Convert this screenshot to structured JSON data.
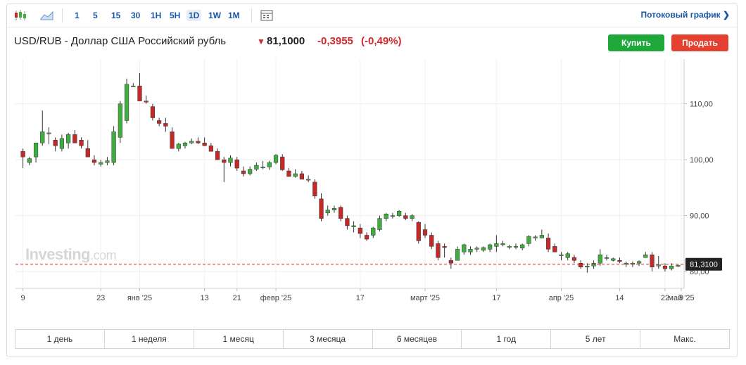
{
  "toolbar": {
    "timeframes": [
      "1",
      "5",
      "15",
      "30",
      "1H",
      "5H",
      "1D",
      "1W",
      "1M"
    ],
    "active_timeframe": "1D",
    "stream_label": "Потоковый график",
    "icons": [
      "candlestick-icon",
      "area-chart-icon",
      "calendar-icon",
      "chevron-right-icon"
    ]
  },
  "instrument": {
    "title": "USD/RUB - Доллар США Российский рубль",
    "price": "81,1000",
    "change": "-0,3955",
    "change_pct": "(-0,49%)",
    "direction_icon": "down-arrow-icon"
  },
  "actions": {
    "buy": "Купить",
    "sell": "Продать"
  },
  "watermark": {
    "brand": "Investing",
    "suffix": ".com"
  },
  "colors": {
    "up": "#3fae3f",
    "down": "#c62828",
    "accent": "#1a56a6",
    "buy": "#1fa83a",
    "sell": "#e3402f"
  },
  "chart_data": {
    "type": "candlestick",
    "y_axis": {
      "ticks": [
        "80,00",
        "90,00",
        "100,00",
        "110,00"
      ],
      "tick_values": [
        80,
        90,
        100,
        110
      ],
      "ylim": [
        77,
        118
      ],
      "position": "right"
    },
    "x_axis": {
      "labels": [
        "9",
        "23",
        "янв '25",
        "13",
        "21",
        "февр '25",
        "17",
        "март '25",
        "17",
        "апр '25",
        "14",
        "22",
        "май '25",
        "9"
      ]
    },
    "current_price_label": "81,3100",
    "current_price": 81.31,
    "candles": [
      [
        101.5,
        102.0,
        98.5,
        100.5
      ],
      [
        99.5,
        100.5,
        99.0,
        100.2
      ],
      [
        100.5,
        103.0,
        99.5,
        103.0
      ],
      [
        103.0,
        108.8,
        102.5,
        105.0
      ],
      [
        104.8,
        105.8,
        102.8,
        104.8
      ],
      [
        103.5,
        104.0,
        101.5,
        102.5
      ],
      [
        102.0,
        104.5,
        101.5,
        103.8
      ],
      [
        103.0,
        104.8,
        102.0,
        104.5
      ],
      [
        104.5,
        105.3,
        103.0,
        103.0
      ],
      [
        103.5,
        104.0,
        102.0,
        102.5
      ],
      [
        102.0,
        103.5,
        100.5,
        100.5
      ],
      [
        100.0,
        100.8,
        99.0,
        99.5
      ],
      [
        99.2,
        100.0,
        98.8,
        99.5
      ],
      [
        99.5,
        100.5,
        99.0,
        99.8
      ],
      [
        99.5,
        106.0,
        99.0,
        105.0
      ],
      [
        104.0,
        110.5,
        103.0,
        110.0
      ],
      [
        107.0,
        114.5,
        106.5,
        113.5
      ],
      [
        113.2,
        113.7,
        113.0,
        113.2
      ],
      [
        113.2,
        115.5,
        110.5,
        110.5
      ],
      [
        110.5,
        111.5,
        110.0,
        110.3
      ],
      [
        109.5,
        110.0,
        107.0,
        107.5
      ],
      [
        107.0,
        107.5,
        106.0,
        106.5
      ],
      [
        106.5,
        107.5,
        105.0,
        106.0
      ],
      [
        105.0,
        105.8,
        102.0,
        102.0
      ],
      [
        102.0,
        103.0,
        101.5,
        102.8
      ],
      [
        102.5,
        103.2,
        102.0,
        103.0
      ],
      [
        103.0,
        103.8,
        102.8,
        103.3
      ],
      [
        103.3,
        104.0,
        102.8,
        103.0
      ],
      [
        103.0,
        104.0,
        102.5,
        102.5
      ],
      [
        102.5,
        103.0,
        101.5,
        101.5
      ],
      [
        101.5,
        102.0,
        100.0,
        100.0
      ],
      [
        100.0,
        100.5,
        96.0,
        99.5
      ],
      [
        99.5,
        100.8,
        98.8,
        100.3
      ],
      [
        100.0,
        100.5,
        98.0,
        98.5
      ],
      [
        98.0,
        98.8,
        97.0,
        97.5
      ],
      [
        97.5,
        98.8,
        97.2,
        98.3
      ],
      [
        98.3,
        99.5,
        98.0,
        99.0
      ],
      [
        98.7,
        99.8,
        98.3,
        98.7
      ],
      [
        98.7,
        99.8,
        98.2,
        99.5
      ],
      [
        99.5,
        101.0,
        99.2,
        100.8
      ],
      [
        100.5,
        101.0,
        98.0,
        98.2
      ],
      [
        98.0,
        98.5,
        97.0,
        97.0
      ],
      [
        97.0,
        98.3,
        96.8,
        97.5
      ],
      [
        97.5,
        98.0,
        96.5,
        96.5
      ],
      [
        96.5,
        97.2,
        96.0,
        96.5
      ],
      [
        96.0,
        96.5,
        93.0,
        93.5
      ],
      [
        93.0,
        94.0,
        89.0,
        89.5
      ],
      [
        90.5,
        91.8,
        90.0,
        91.0
      ],
      [
        91.0,
        91.8,
        90.5,
        91.3
      ],
      [
        91.5,
        91.8,
        89.0,
        89.5
      ],
      [
        89.5,
        90.0,
        87.5,
        88.2
      ],
      [
        88.0,
        89.0,
        87.0,
        88.2
      ],
      [
        87.8,
        88.5,
        86.0,
        86.8
      ],
      [
        86.5,
        87.0,
        85.5,
        85.8
      ],
      [
        86.5,
        88.0,
        86.0,
        87.8
      ],
      [
        87.5,
        90.0,
        87.2,
        89.5
      ],
      [
        89.5,
        90.5,
        89.0,
        90.3
      ],
      [
        90.0,
        90.5,
        89.5,
        90.0
      ],
      [
        90.0,
        91.0,
        89.8,
        90.8
      ],
      [
        90.0,
        90.5,
        89.2,
        89.5
      ],
      [
        89.5,
        90.3,
        89.0,
        90.0
      ],
      [
        88.8,
        89.0,
        85.0,
        85.5
      ],
      [
        87.5,
        88.5,
        86.0,
        86.5
      ],
      [
        86.5,
        87.0,
        84.0,
        84.5
      ],
      [
        85.0,
        85.5,
        82.0,
        82.5
      ],
      [
        84.5,
        85.0,
        82.5,
        84.3
      ],
      [
        82.0,
        82.5,
        80.5,
        81.5
      ],
      [
        82.0,
        84.5,
        82.0,
        84.0
      ],
      [
        83.5,
        85.0,
        83.0,
        84.8
      ],
      [
        83.5,
        84.5,
        83.0,
        84.0
      ],
      [
        84.0,
        84.5,
        83.5,
        84.2
      ],
      [
        83.8,
        84.5,
        83.5,
        84.3
      ],
      [
        84.0,
        85.0,
        83.5,
        84.8
      ],
      [
        84.5,
        86.5,
        83.5,
        85.0
      ],
      [
        84.8,
        85.5,
        84.5,
        85.0
      ],
      [
        84.5,
        84.8,
        84.0,
        84.5
      ],
      [
        84.5,
        85.0,
        84.0,
        84.5
      ],
      [
        84.2,
        85.0,
        83.8,
        84.8
      ],
      [
        85.0,
        86.5,
        84.5,
        86.3
      ],
      [
        86.0,
        86.5,
        85.5,
        86.2
      ],
      [
        86.0,
        87.5,
        86.0,
        86.5
      ],
      [
        86.0,
        86.8,
        83.5,
        84.0
      ],
      [
        84.5,
        85.0,
        83.5,
        83.5
      ],
      [
        83.0,
        83.5,
        82.0,
        83.0
      ],
      [
        82.5,
        83.5,
        82.0,
        83.2
      ],
      [
        82.5,
        83.0,
        81.5,
        82.0
      ],
      [
        81.5,
        82.0,
        80.5,
        80.8
      ],
      [
        80.8,
        81.5,
        79.8,
        81.0
      ],
      [
        81.0,
        82.0,
        80.5,
        81.5
      ],
      [
        81.5,
        84.0,
        81.0,
        83.0
      ],
      [
        82.5,
        83.0,
        82.0,
        82.5
      ],
      [
        82.0,
        82.5,
        81.8,
        82.3
      ],
      [
        82.0,
        82.5,
        81.5,
        81.8
      ],
      [
        81.3,
        81.8,
        80.8,
        81.5
      ],
      [
        81.3,
        81.8,
        80.8,
        81.5
      ],
      [
        81.5,
        82.0,
        81.0,
        81.8
      ],
      [
        82.5,
        83.5,
        82.5,
        83.0
      ],
      [
        83.0,
        83.5,
        80.0,
        80.8
      ],
      [
        81.0,
        82.8,
        80.5,
        81.2
      ],
      [
        81.0,
        81.5,
        80.0,
        80.5
      ],
      [
        80.5,
        81.5,
        80.2,
        81.0
      ],
      [
        81.0,
        81.3,
        80.8,
        81.1
      ]
    ]
  },
  "ranges": [
    "1 день",
    "1 неделя",
    "1 месяц",
    "3 месяца",
    "6 месяцев",
    "1 год",
    "5 лет",
    "Макс."
  ]
}
